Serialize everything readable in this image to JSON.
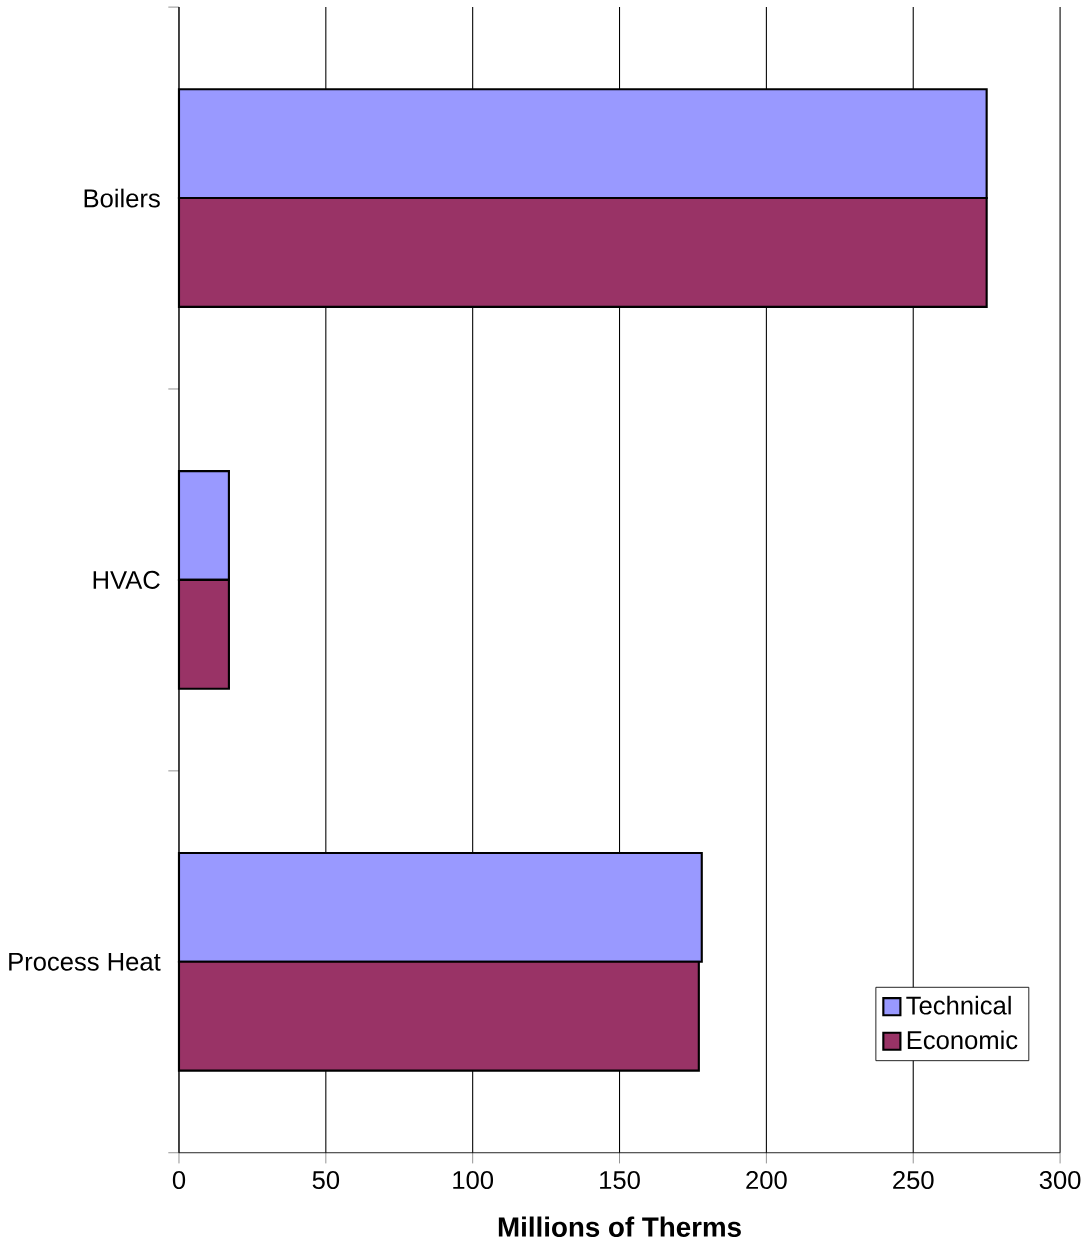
{
  "chart_data": {
    "type": "bar",
    "orientation": "horizontal",
    "xlabel": "**Millions of Therms**",
    "categories": [
      "Boilers",
      "HVAC",
      "Process Heat"
    ],
    "series": [
      {
        "name": "Technical",
        "color": "#9999ff",
        "values": [
          275,
          17,
          178
        ]
      },
      {
        "name": "Economic",
        "color": "#993366",
        "values": [
          275,
          17,
          177
        ]
      }
    ],
    "xlim": [
      0,
      300
    ],
    "xticks": [
      0,
      50,
      100,
      150,
      200,
      250,
      300
    ],
    "grid": "x",
    "legend": "bottom right"
  }
}
